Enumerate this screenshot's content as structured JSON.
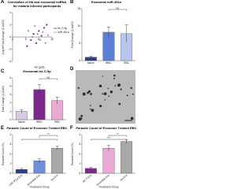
{
  "chart_data": [
    {
      "type": "scatter",
      "panel": "A",
      "title": "Correlation of Hb and exosomal miRNA for malaria infected participants",
      "x_label": "Hb (g/dl)",
      "y_label": "Log of Fold Change (2-ΔΔCt)",
      "xlim": [
        0,
        15
      ],
      "xticks": [
        0,
        5,
        10,
        15
      ],
      "ylim": [
        -4,
        4
      ],
      "yticks": [
        -4,
        -2,
        0,
        2,
        4
      ],
      "series": [
        {
          "name": "let-7i-5p",
          "color": "#7b2a8c",
          "x": [
            5.5,
            7,
            8,
            9,
            10,
            11,
            12,
            13
          ],
          "values": [
            -1.5,
            -0.5,
            0.5,
            -1,
            1,
            0.2,
            1.5,
            2
          ]
        },
        {
          "name": "miR-451a",
          "color": "#9a9a9a",
          "x": [
            6,
            7.5,
            8.5,
            9.5,
            10.5,
            11.5,
            12.5,
            13.5
          ],
          "values": [
            1,
            0,
            1.8,
            0.5,
            -0.5,
            0.8,
            -1,
            0.3
          ]
        }
      ]
    },
    {
      "type": "bar",
      "panel": "B",
      "title": "Exosomal miR-451a",
      "y_label": "Fold Change (2-ΔΔCt)",
      "categories": [
        "Naive",
        "iRBC",
        "RBC"
      ],
      "values": [
        1,
        8.2,
        7.8
      ],
      "errors": [
        0.3,
        1.5,
        2.5
      ],
      "colors": [
        "#2d3f8f",
        "#5b7fd6",
        "#b7c6ee"
      ],
      "ylim": [
        0,
        15
      ],
      "yticks": [
        0,
        5,
        10,
        15
      ],
      "annotations": [
        "ns"
      ]
    },
    {
      "type": "bar",
      "panel": "C",
      "title": "Exosomal let-7i-5p",
      "y_label": "Fold Change (2-ΔΔCt)",
      "categories": [
        "Naive",
        "iRBC",
        "RBC"
      ],
      "values": [
        1,
        3.6,
        2.3
      ],
      "errors": [
        0.2,
        0.6,
        0.4
      ],
      "colors": [
        "#d9c9e3",
        "#7b2a8c",
        "#e9a9d3"
      ],
      "ylim": [
        0,
        5
      ],
      "yticks": [
        0,
        1,
        2,
        3,
        4,
        5
      ],
      "annotations": [
        "ns"
      ]
    },
    {
      "type": "bar",
      "panel": "E",
      "title": "Parasite Count of Exosome Treated RBC",
      "x_label": "Treatment Group",
      "y_label": "Parasite Count (%)",
      "categories": [
        "miR-451a Exo",
        "Scramble Exo",
        "No Exo"
      ],
      "values": [
        0.4,
        1.3,
        2.6
      ],
      "errors": [
        0.1,
        0.2,
        0.2
      ],
      "colors": [
        "#2d3f8f",
        "#6f8fdc",
        "#a8a8a8"
      ],
      "ylim": [
        0,
        4
      ],
      "yticks": [
        0,
        1,
        2,
        3,
        4
      ],
      "annotations": [
        "*",
        "**"
      ]
    },
    {
      "type": "bar",
      "panel": "F",
      "title": "Parasite Count of Exosome Treated RBC",
      "x_label": "Treatment Group",
      "y_label": "Parasite Count (%)",
      "categories": [
        "let-7i Exo",
        "Scramble Exo",
        "No Exo"
      ],
      "values": [
        0.5,
        2.6,
        3.3
      ],
      "errors": [
        0.1,
        0.3,
        0.2
      ],
      "colors": [
        "#7b2a8c",
        "#e9a9d3",
        "#a8a8a8"
      ],
      "ylim": [
        0,
        4
      ],
      "yticks": [
        0,
        1,
        2,
        3,
        4
      ],
      "annotations": [
        "***",
        "**"
      ]
    }
  ],
  "image_panel": {
    "panel": "D"
  }
}
